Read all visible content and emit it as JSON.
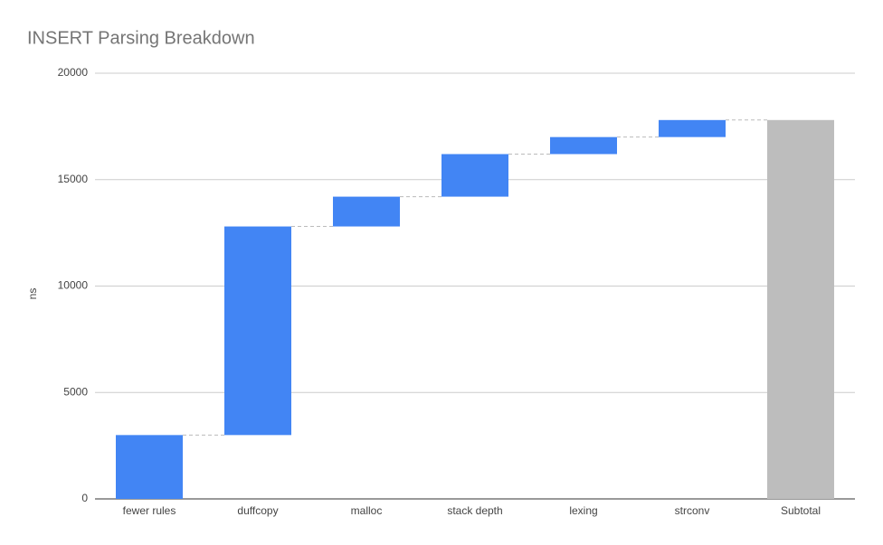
{
  "chart_data": {
    "type": "waterfall",
    "title": "INSERT Parsing Breakdown",
    "y_label": "ns",
    "categories": [
      "fewer rules",
      "duffcopy",
      "malloc",
      "stack depth",
      "lexing",
      "strconv",
      "Subtotal"
    ],
    "values": [
      3000,
      9800,
      1400,
      2000,
      800,
      800,
      17800
    ],
    "color": "#4285f4",
    "total_color": "#bdbdbd",
    "ylim": [
      0,
      20000
    ],
    "yticks": [
      0,
      5000,
      10000,
      15000,
      20000
    ],
    "grid": true
  }
}
